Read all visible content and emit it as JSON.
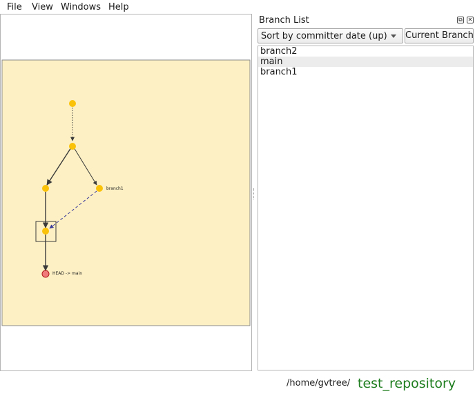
{
  "menu": [
    "File",
    "View",
    "Windows",
    "Help"
  ],
  "graph": {
    "background": "#fdf0c4",
    "commit_color": "#fbc20a",
    "head_commit_color": "#f07a7a",
    "labels": {
      "branch1": "branch1",
      "head": "HEAD -> main"
    }
  },
  "branch_panel": {
    "title": "Branch List",
    "sort_value": "Sort by committer date (up)",
    "current_branch_label": "Current Branch",
    "branches": [
      "branch2",
      "main",
      "branch1"
    ],
    "selected": "main"
  },
  "status": {
    "path": "/home/gvtree/",
    "repository": "test_repository"
  }
}
